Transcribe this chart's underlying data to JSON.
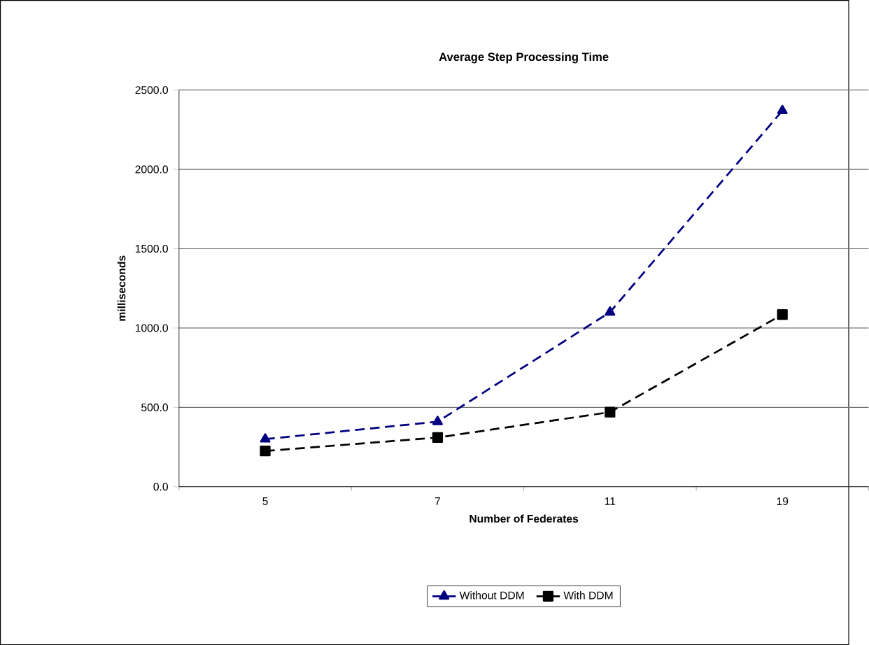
{
  "chart_data": {
    "type": "line",
    "title": "Average Step Processing Time",
    "xlabel": "Number of Federates",
    "ylabel": "milliseconds",
    "categories": [
      "5",
      "7",
      "11",
      "19"
    ],
    "series": [
      {
        "name": "Without DDM",
        "color": "#000080",
        "marker": "triangle",
        "line_style": "dashed",
        "values": [
          300,
          410,
          1100,
          2370
        ]
      },
      {
        "name": "With DDM",
        "color": "#000000",
        "marker": "square",
        "line_style": "dashed",
        "values": [
          225,
          310,
          470,
          1085
        ]
      }
    ],
    "ylim": [
      0,
      2500
    ],
    "yticks": [
      {
        "value": 0,
        "label": "0.0"
      },
      {
        "value": 500,
        "label": "500.0"
      },
      {
        "value": 1000,
        "label": "1000.0"
      },
      {
        "value": 1500,
        "label": "1500.0"
      },
      {
        "value": 2000,
        "label": "2000.0"
      },
      {
        "value": 2500,
        "label": "2500.0"
      }
    ],
    "grid": "y",
    "legend": "bottom"
  }
}
